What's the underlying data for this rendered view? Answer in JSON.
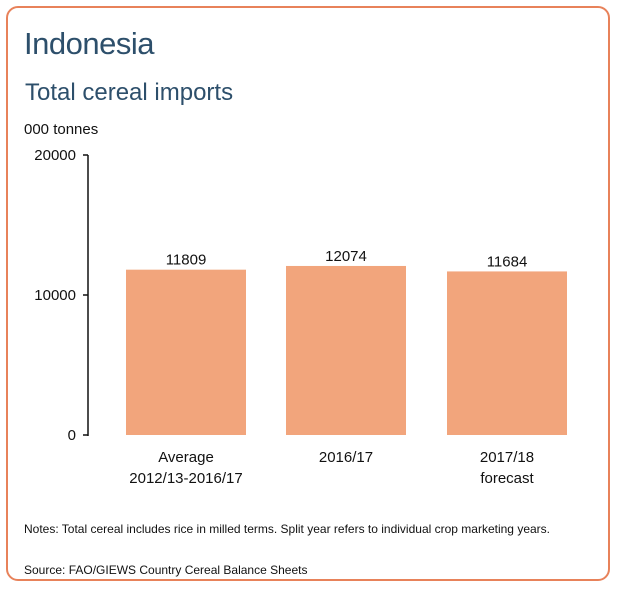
{
  "header": {
    "country": "Indonesia",
    "subtitle": "Total cereal imports"
  },
  "chart_data": {
    "type": "bar",
    "title": "Total cereal imports",
    "ylabel": "000 tonnes",
    "xlabel": "",
    "categories": [
      [
        "Average",
        "2012/13-2016/17"
      ],
      [
        "2016/17"
      ],
      [
        "2017/18",
        "forecast"
      ]
    ],
    "values": [
      11809,
      12074,
      11684
    ],
    "data_labels": [
      "11809",
      "12074",
      "11684"
    ],
    "yticks": [
      0,
      10000,
      20000
    ],
    "ytick_labels": [
      "0",
      "10000",
      "20000"
    ],
    "ylim": [
      0,
      20000
    ],
    "grid": false,
    "bar_color": "#f2a57c"
  },
  "footer": {
    "notes": "Notes: Total cereal includes rice in milled terms. Split year refers to individual crop marketing years.",
    "source": "Source: FAO/GIEWS Country Cereal Balance Sheets"
  }
}
